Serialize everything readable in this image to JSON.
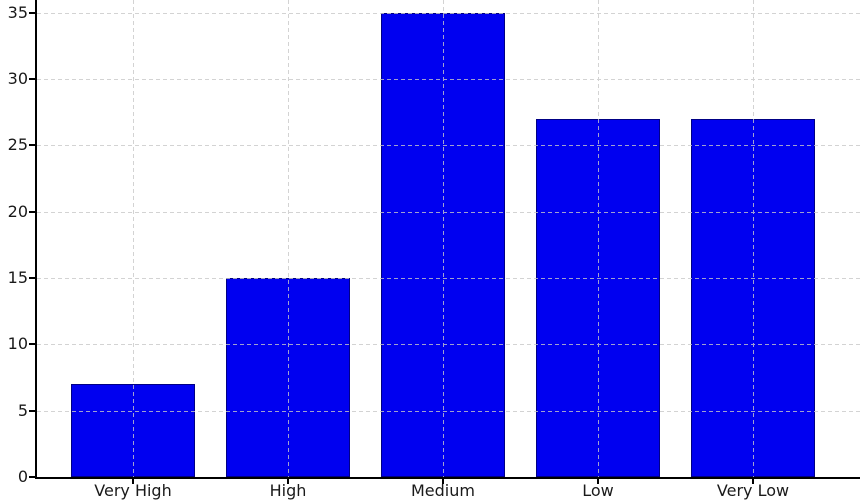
{
  "chart_data": {
    "type": "bar",
    "title": "",
    "xlabel": "",
    "ylabel": "",
    "categories": [
      "Very High",
      "High",
      "Medium",
      "Low",
      "Very Low"
    ],
    "values": [
      7,
      15,
      35,
      27,
      27
    ],
    "ylim": [
      0,
      36
    ],
    "yticks": [
      0,
      5,
      10,
      15,
      20,
      25,
      30,
      35
    ],
    "ytick_labels": [
      "0",
      "5",
      "10",
      "15",
      "20",
      "25",
      "30",
      "35"
    ],
    "grid": "dashed lines on both axes, drawn over bars",
    "legend": "none",
    "spines": "left and bottom only",
    "colors": {
      "bar_fill": "#0000F0",
      "bar_edge": "#000085",
      "grid_line": "#c9c9c9",
      "axis_line": "#000000",
      "tick_text": "#1a1a1a",
      "background": "#ffffff"
    }
  }
}
